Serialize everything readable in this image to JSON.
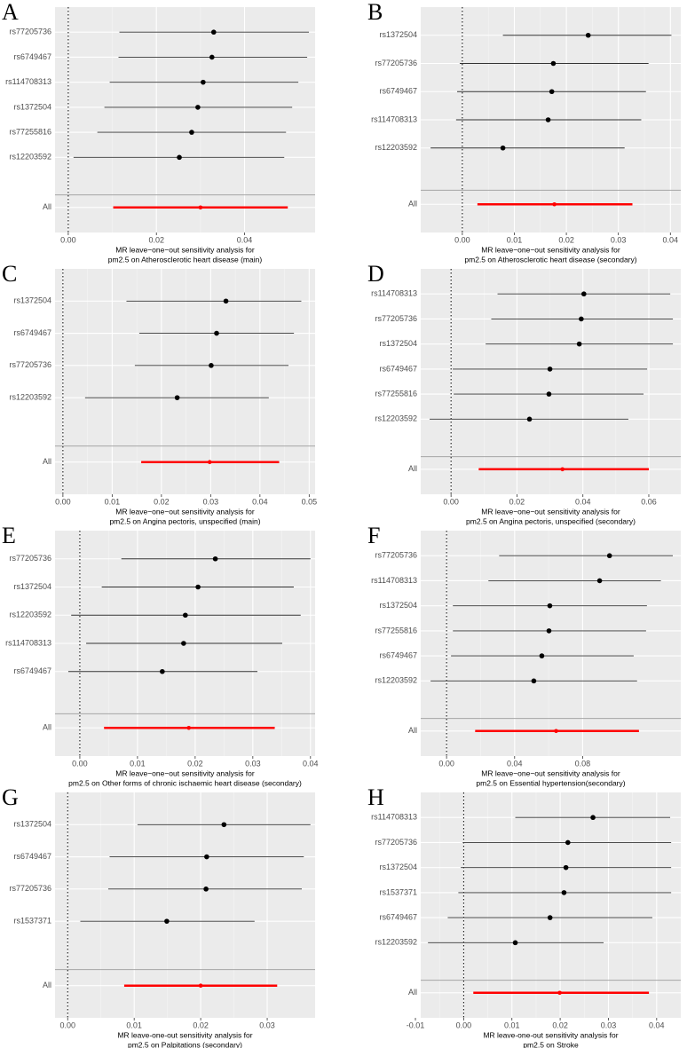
{
  "chart_data": [
    {
      "type": "forest",
      "letter": "A",
      "categories": [
        "rs77205736",
        "rs6749467",
        "rs114708313",
        "rs1372504",
        "rs77255816",
        "rs12203592",
        "All"
      ],
      "values": [
        0.033,
        0.0326,
        0.0306,
        0.0294,
        0.028,
        0.0252,
        0.03
      ],
      "ci_lower": [
        0.0116,
        0.0114,
        0.0094,
        0.0082,
        0.0066,
        0.0012,
        0.0102
      ],
      "ci_upper": [
        0.0546,
        0.0542,
        0.0522,
        0.0508,
        0.0494,
        0.049,
        0.0498
      ],
      "xlim": [
        -0.003,
        0.056
      ],
      "xticks": [
        {
          "value": 0,
          "label": "0.00"
        },
        0.02,
        0.04
      ],
      "xlabel": [
        "MR leave−one−out sensitivity analysis for",
        "pm2.5 on Atherosclerotic heart disease (main)"
      ],
      "point_color": "#000000",
      "summary_color": "#ff0000",
      "grid": true
    },
    {
      "type": "forest",
      "letter": "B",
      "categories": [
        "rs1372504",
        "rs77205736",
        "rs6749467",
        "rs114708313",
        "rs12203592",
        "All"
      ],
      "values": [
        0.0242,
        0.0175,
        0.0172,
        0.0165,
        0.0078,
        0.0177
      ],
      "ci_lower": [
        0.0078,
        -0.0005,
        -0.001,
        -0.0012,
        -0.0061,
        0.0029
      ],
      "ci_upper": [
        0.0402,
        0.0358,
        0.0353,
        0.0344,
        0.0312,
        0.0327
      ],
      "xlim": [
        -0.008,
        0.042
      ],
      "xticks": [
        {
          "value": 0,
          "label": "0.00"
        },
        0.01,
        0.02,
        0.03,
        0.04
      ],
      "xlabel": [
        "MR leave−one−out sensitivity analysis for",
        "pm2.5 on Atherosclerotic heart disease (secondary)"
      ],
      "point_color": "#000000",
      "summary_color": "#ff0000",
      "grid": true
    },
    {
      "type": "forest",
      "letter": "C",
      "categories": [
        "rs1372504",
        "rs6749467",
        "rs77205736",
        "rs12203592",
        "All"
      ],
      "values": [
        0.0331,
        0.0312,
        0.0301,
        0.0232,
        0.0298
      ],
      "ci_lower": [
        0.0129,
        0.0155,
        0.0146,
        0.0045,
        0.0159
      ],
      "ci_upper": [
        0.0484,
        0.0469,
        0.0458,
        0.0418,
        0.0439
      ],
      "xlim": [
        -0.0016,
        0.0512
      ],
      "xticks": [
        {
          "value": 0,
          "label": "0.00"
        },
        0.01,
        0.02,
        0.03,
        0.04,
        0.05
      ],
      "xlabel": [
        "MR leave−one−out sensitivity analysis for",
        "pm2.5 on Angina pectoris, unspecified (main)"
      ],
      "point_color": "#000000",
      "summary_color": "#ff0000",
      "grid": true
    },
    {
      "type": "forest",
      "letter": "D",
      "categories": [
        "rs114708313",
        "rs77205736",
        "rs1372504",
        "rs6749467",
        "rs77255816",
        "rs12203592",
        "All"
      ],
      "values": [
        0.0403,
        0.0395,
        0.0389,
        0.03,
        0.0297,
        0.0238,
        0.0338
      ],
      "ci_lower": [
        0.0141,
        0.0122,
        0.0105,
        0.0005,
        0.0008,
        -0.0065,
        0.0084
      ],
      "ci_upper": [
        0.0665,
        0.0673,
        0.0673,
        0.0595,
        0.0584,
        0.0538,
        0.06
      ],
      "xlim": [
        -0.0092,
        0.0697
      ],
      "xticks": [
        {
          "value": 0,
          "label": "0.00"
        },
        0.02,
        0.04,
        0.06
      ],
      "xlabel": [
        "MR leave−one−out sensitivity analysis for",
        "pm2.5 on Angina pectoris, unspecified (secondary)"
      ],
      "point_color": "#000000",
      "summary_color": "#ff0000",
      "grid": true
    },
    {
      "type": "forest",
      "letter": "E",
      "categories": [
        "rs77205736",
        "rs1372504",
        "rs12203592",
        "rs114708313",
        "rs6749467",
        "All"
      ],
      "values": [
        0.0235,
        0.0205,
        0.0183,
        0.018,
        0.0143,
        0.0189
      ],
      "ci_lower": [
        0.0072,
        0.0038,
        -0.0015,
        0.0011,
        -0.002,
        0.0042
      ],
      "ci_upper": [
        0.04,
        0.0371,
        0.0383,
        0.0351,
        0.0308,
        0.0338
      ],
      "xlim": [
        -0.0043,
        0.0408
      ],
      "xticks": [
        {
          "value": 0,
          "label": "0.00"
        },
        0.01,
        0.02,
        0.03,
        0.04
      ],
      "xlabel": [
        "MR leave−one−out sensitivity analysis for",
        "pm2.5 on Other forms of chronic ischaemic heart disease (secondary)"
      ],
      "point_color": "#000000",
      "summary_color": "#ff0000",
      "grid": true
    },
    {
      "type": "forest",
      "letter": "F",
      "categories": [
        "rs77205736",
        "rs114708313",
        "rs1372504",
        "rs77255816",
        "rs6749467",
        "rs12203592",
        "All"
      ],
      "values": [
        0.0958,
        0.09,
        0.0607,
        0.0602,
        0.056,
        0.0513,
        0.0644
      ],
      "ci_lower": [
        0.0309,
        0.0246,
        0.0037,
        0.0037,
        0.0026,
        -0.0094,
        0.0168
      ],
      "ci_upper": [
        0.133,
        0.126,
        0.1178,
        0.1173,
        0.11,
        0.112,
        0.1131
      ],
      "xlim": [
        -0.0152,
        0.1377
      ],
      "xticks": [
        {
          "value": 0,
          "label": "0.00"
        },
        0.04,
        0.08
      ],
      "xlabel": [
        "MR leave−one−out sensitivity analysis for",
        "pm2.5 on Essential hypertension(secondary)"
      ],
      "point_color": "#000000",
      "summary_color": "#ff0000",
      "grid": true
    },
    {
      "type": "forest",
      "letter": "G",
      "categories": [
        "rs1372504",
        "rs6749467",
        "rs77205736",
        "rs1537371",
        "All"
      ],
      "values": [
        0.0235,
        0.0209,
        0.0208,
        0.0149,
        0.02
      ],
      "ci_lower": [
        0.0105,
        0.0063,
        0.0061,
        0.0019,
        0.0085
      ],
      "ci_upper": [
        0.0365,
        0.0355,
        0.0352,
        0.0281,
        0.0315
      ],
      "xlim": [
        -0.0019,
        0.0372
      ],
      "xticks": [
        {
          "value": 0,
          "label": "0.00"
        },
        0.01,
        0.02,
        0.03
      ],
      "xlabel": [
        "MR leave-one-out sensitivity analysis for",
        "pm2.5 on Palpitations (secondary)"
      ],
      "point_color": "#000000",
      "summary_color": "#ff0000",
      "grid": true
    },
    {
      "type": "forest",
      "letter": "H",
      "categories": [
        "rs114708313",
        "rs77205736",
        "rs1372504",
        "rs1537371",
        "rs6749467",
        "rs12203592",
        "All"
      ],
      "values": [
        0.0268,
        0.0216,
        0.0212,
        0.0208,
        0.0179,
        0.0107,
        0.0199
      ],
      "ci_lower": [
        0.0107,
        -0.0002,
        -0.0006,
        -0.0011,
        -0.0033,
        -0.0074,
        0.002
      ],
      "ci_upper": [
        0.0428,
        0.043,
        0.043,
        0.043,
        0.0391,
        0.029,
        0.0384
      ],
      "xlim": [
        -0.0089,
        0.045
      ],
      "xticks": [
        -0.01,
        {
          "value": 0,
          "label": "0.00"
        },
        0.01,
        0.02,
        0.03,
        0.04
      ],
      "xlabel": [
        "MR leave-one-out sensitivity analysis for",
        "pm2.5 on Stroke"
      ],
      "point_color": "#000000",
      "summary_color": "#ff0000",
      "grid": true
    }
  ]
}
